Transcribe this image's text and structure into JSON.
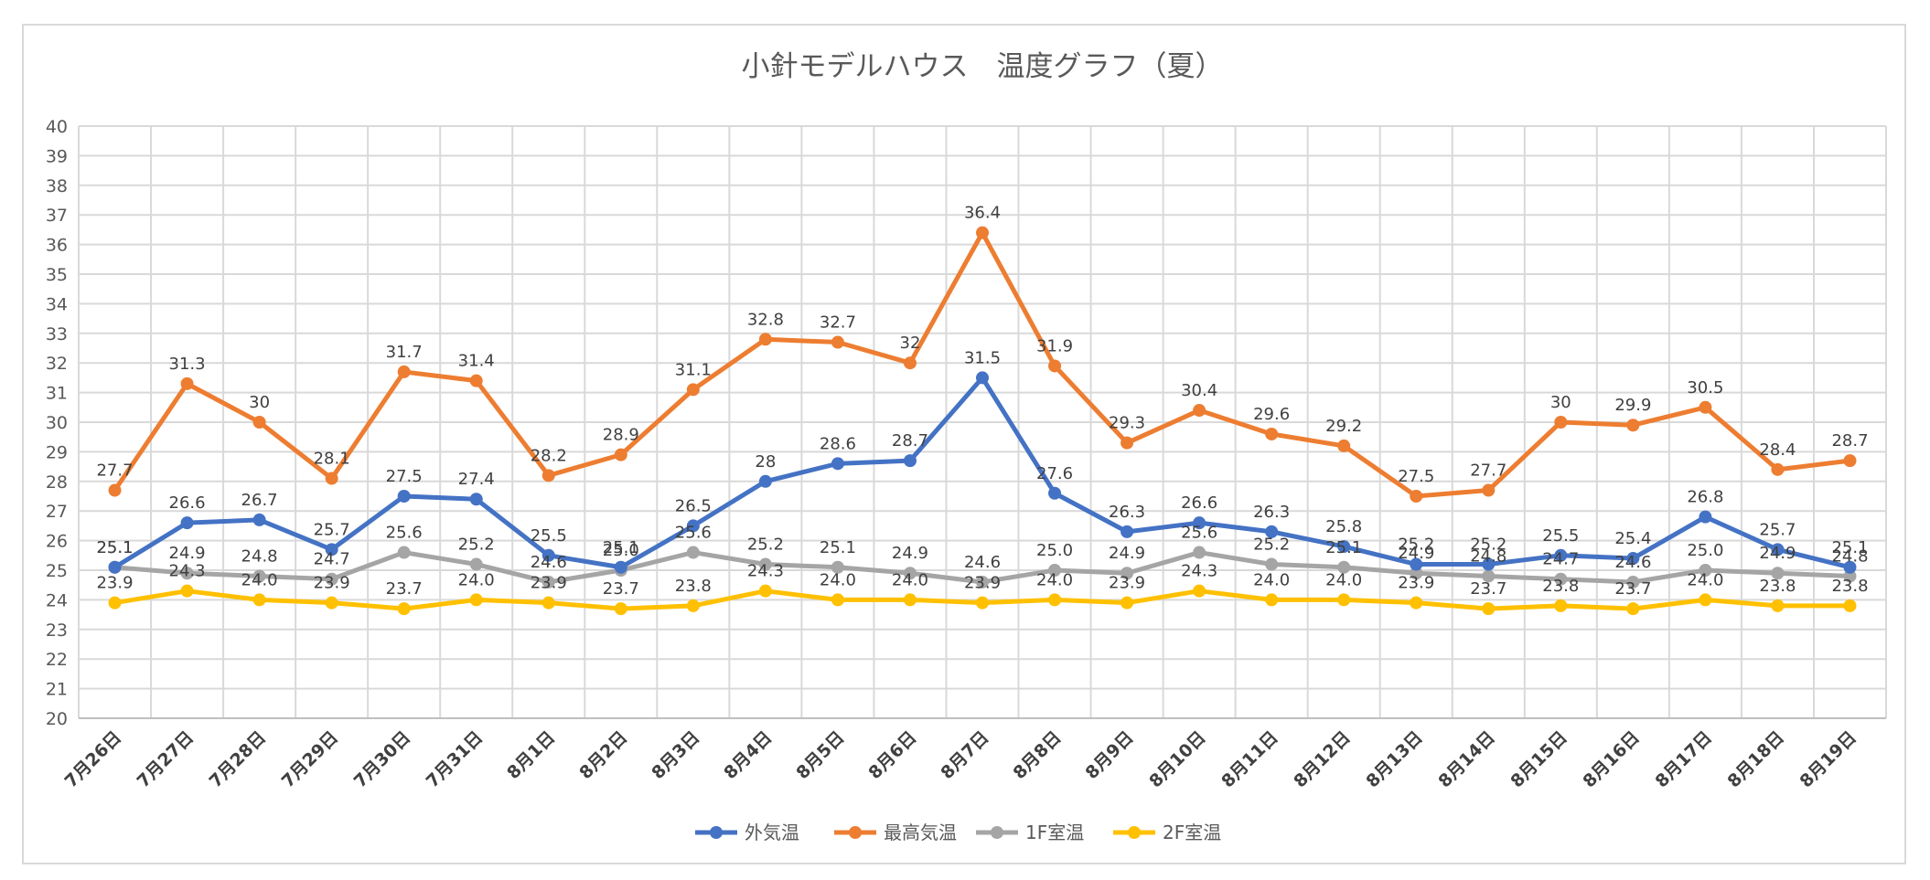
{
  "chart_data": {
    "type": "line",
    "title": "小針モデルハウス　温度グラフ（夏）",
    "xlabel": "",
    "ylabel": "",
    "ylim": [
      20,
      40
    ],
    "yticks": [
      "20",
      "21",
      "22",
      "23",
      "24",
      "25",
      "26",
      "27",
      "28",
      "29",
      "30",
      "31",
      "32",
      "33",
      "34",
      "35",
      "36",
      "37",
      "38",
      "39",
      "40"
    ],
    "grid": true,
    "legend_position": "bottom",
    "categories": [
      "7月26日",
      "7月27日",
      "7月28日",
      "7月29日",
      "7月30日",
      "7月31日",
      "8月1日",
      "8月2日",
      "8月3日",
      "8月4日",
      "8月5日",
      "8月6日",
      "8月7日",
      "8月8日",
      "8月9日",
      "8月10日",
      "8月11日",
      "8月12日",
      "8月13日",
      "8月14日",
      "8月15日",
      "8月16日",
      "8月17日",
      "8月18日",
      "8月19日"
    ],
    "series": [
      {
        "name": "外気温",
        "color": "#4472c4",
        "values": [
          25.1,
          26.6,
          26.7,
          25.7,
          27.5,
          27.4,
          25.5,
          25.1,
          26.5,
          28,
          28.6,
          28.7,
          31.5,
          27.6,
          26.3,
          26.6,
          26.3,
          25.8,
          25.2,
          25.2,
          25.5,
          25.4,
          26.8,
          25.7,
          25.1
        ],
        "labels": [
          "25.1",
          "26.6",
          "26.7",
          "25.7",
          "27.5",
          "27.4",
          "25.5",
          "25.1",
          "26.5",
          "28",
          "28.6",
          "28.7",
          "31.5",
          "27.6",
          "26.3",
          "26.6",
          "26.3",
          "25.8",
          "25.2",
          "25.2",
          "25.5",
          "25.4",
          "26.8",
          "25.7",
          "25.1"
        ]
      },
      {
        "name": "最高気温",
        "color": "#ed7d31",
        "values": [
          27.7,
          31.3,
          30,
          28.1,
          31.7,
          31.4,
          28.2,
          28.9,
          31.1,
          32.8,
          32.7,
          32,
          36.4,
          31.9,
          29.3,
          30.4,
          29.6,
          29.2,
          27.5,
          27.7,
          30,
          29.9,
          30.5,
          28.4,
          28.7
        ],
        "labels": [
          "27.7",
          "31.3",
          "30",
          "28.1",
          "31.7",
          "31.4",
          "28.2",
          "28.9",
          "31.1",
          "32.8",
          "32.7",
          "32",
          "36.4",
          "31.9",
          "29.3",
          "30.4",
          "29.6",
          "29.2",
          "27.5",
          "27.7",
          "30",
          "29.9",
          "30.5",
          "28.4",
          "28.7"
        ]
      },
      {
        "name": "1F室温",
        "color": "#a5a5a5",
        "values": [
          25.1,
          24.9,
          24.8,
          24.7,
          25.6,
          25.2,
          24.6,
          25.0,
          25.6,
          25.2,
          25.1,
          24.9,
          24.6,
          25.0,
          24.9,
          25.6,
          25.2,
          25.1,
          24.9,
          24.8,
          24.7,
          24.6,
          25.0,
          24.9,
          24.8
        ],
        "labels": [
          "25.1",
          "24.9",
          "24.8",
          "24.7",
          "25.6",
          "25.2",
          "24.6",
          "25.0",
          "25.6",
          "25.2",
          "25.1",
          "24.9",
          "24.6",
          "25.0",
          "24.9",
          "25.6",
          "25.2",
          "25.1",
          "24.9",
          "24.8",
          "24.7",
          "24.6",
          "25.0",
          "24.9",
          "24.8"
        ]
      },
      {
        "name": "2F室温",
        "color": "#ffc000",
        "values": [
          23.9,
          24.3,
          24.0,
          23.9,
          23.7,
          24.0,
          23.9,
          23.7,
          23.8,
          24.3,
          24.0,
          24.0,
          23.9,
          24.0,
          23.9,
          24.3,
          24.0,
          24.0,
          23.9,
          23.7,
          23.8,
          23.7,
          24.0,
          23.8,
          23.8
        ],
        "labels": [
          "23.9",
          "24.3",
          "24.0",
          "23.9",
          "23.7",
          "24.0",
          "23.9",
          "23.7",
          "23.8",
          "24.3",
          "24.0",
          "24.0",
          "23.9",
          "24.0",
          "23.9",
          "24.3",
          "24.0",
          "24.0",
          "23.9",
          "23.7",
          "23.8",
          "23.7",
          "24.0",
          "23.8",
          "23.8"
        ]
      }
    ]
  }
}
